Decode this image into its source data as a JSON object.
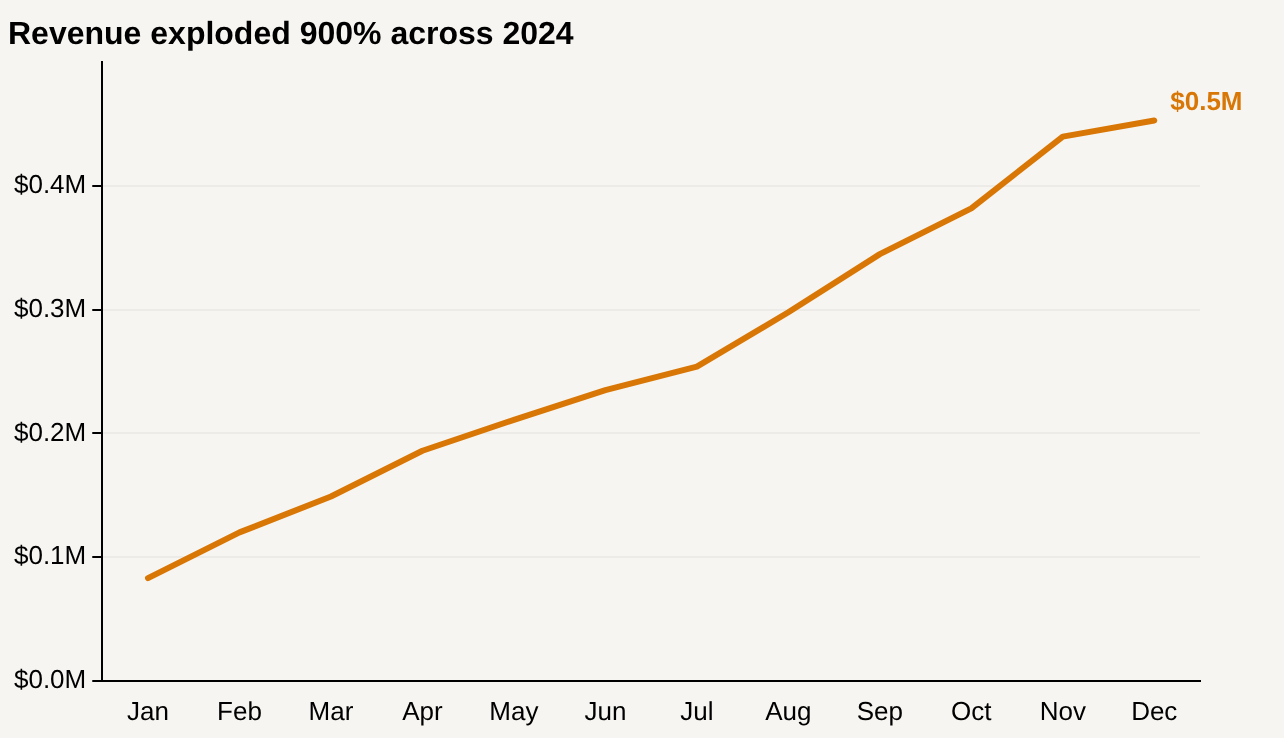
{
  "chart_data": {
    "type": "line",
    "title": "Revenue exploded 900% across 2024",
    "categories": [
      "Jan",
      "Feb",
      "Mar",
      "Apr",
      "May",
      "Jun",
      "Jul",
      "Aug",
      "Sep",
      "Oct",
      "Nov",
      "Dec"
    ],
    "series": [
      {
        "color": "#d97706",
        "values": [
          0.083,
          0.12,
          0.149,
          0.186,
          0.211,
          0.235,
          0.254,
          0.298,
          0.345,
          0.382,
          0.44,
          0.453
        ]
      }
    ],
    "ylim": [
      0,
      0.5
    ],
    "yticks": [
      {
        "value": 0,
        "label": "$0.0M"
      },
      {
        "value": 0.1,
        "label": "$0.1M"
      },
      {
        "value": 0.2,
        "label": "$0.2M"
      },
      {
        "value": 0.3,
        "label": "$0.3M"
      },
      {
        "value": 0.4,
        "label": "$0.4M"
      }
    ],
    "grid": "y",
    "legend": false,
    "marker": "none",
    "line_style": "solid",
    "annotations": [
      {
        "text": "$0.5M",
        "x": "Dec",
        "y": 0.453
      }
    ]
  }
}
